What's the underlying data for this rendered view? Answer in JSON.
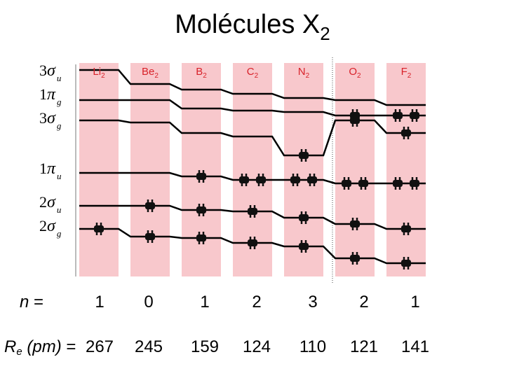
{
  "title": {
    "main": "Molécules X",
    "subscript": "2"
  },
  "molecules": [
    {
      "label": "Li2",
      "base": "Li",
      "sub": "2"
    },
    {
      "label": "Be2",
      "base": "Be",
      "sub": "2"
    },
    {
      "label": "B2",
      "base": "B",
      "sub": "2"
    },
    {
      "label": "C2",
      "base": "C",
      "sub": "2"
    },
    {
      "label": "N2",
      "base": "N",
      "sub": "2"
    },
    {
      "label": "O2",
      "base": "O",
      "sub": "2"
    },
    {
      "label": "F2",
      "base": "F",
      "sub": "2"
    }
  ],
  "orbitals": [
    {
      "name": "3σu",
      "num": "3",
      "greek": "σ",
      "sub": "u"
    },
    {
      "name": "1πg",
      "num": "1",
      "greek": "π",
      "sub": "g"
    },
    {
      "name": "3σg",
      "num": "3",
      "greek": "σ",
      "sub": "g"
    },
    {
      "name": "1πu",
      "num": "1",
      "greek": "π",
      "sub": "u"
    },
    {
      "name": "2σu",
      "num": "2",
      "greek": "σ",
      "sub": "u"
    },
    {
      "name": "2σg",
      "num": "2",
      "greek": "σ",
      "sub": "g"
    }
  ],
  "occupancy": [
    {
      "3σu": 0,
      "1πg": 0,
      "3σg": 0,
      "1πu": 0,
      "2σu": 0,
      "2σg": 2
    },
    {
      "3σu": 0,
      "1πg": 0,
      "3σg": 0,
      "1πu": 0,
      "2σu": 2,
      "2σg": 2
    },
    {
      "3σu": 0,
      "1πg": 0,
      "3σg": 0,
      "1πu": 2,
      "2σu": 2,
      "2σg": 2
    },
    {
      "3σu": 0,
      "1πg": 0,
      "3σg": 0,
      "1πu": 4,
      "2σu": 2,
      "2σg": 2
    },
    {
      "3σu": 0,
      "1πg": 0,
      "3σg": 2,
      "1πu": 4,
      "2σu": 2,
      "2σg": 2
    },
    {
      "3σu": 0,
      "1πg": 2,
      "3σg": 2,
      "1πu": 4,
      "2σu": 2,
      "2σg": 2
    },
    {
      "3σu": 0,
      "1πg": 4,
      "3σg": 2,
      "1πu": 4,
      "2σu": 2,
      "2σg": 2
    }
  ],
  "bond_order_row": {
    "label": "n",
    "equals": "=",
    "values": [
      "1",
      "0",
      "1",
      "2",
      "3",
      "2",
      "1"
    ]
  },
  "bond_length_row": {
    "label": "R",
    "label_sub": "e",
    "unit": "(pm)",
    "equals": "=",
    "values": [
      "267",
      "245",
      "159",
      "124",
      "110",
      "121",
      "141"
    ]
  },
  "colors": {
    "column_fill": "#f8c8cc",
    "molecule_label": "#d8222a",
    "level_line": "#000000",
    "divider": "#666666"
  }
}
